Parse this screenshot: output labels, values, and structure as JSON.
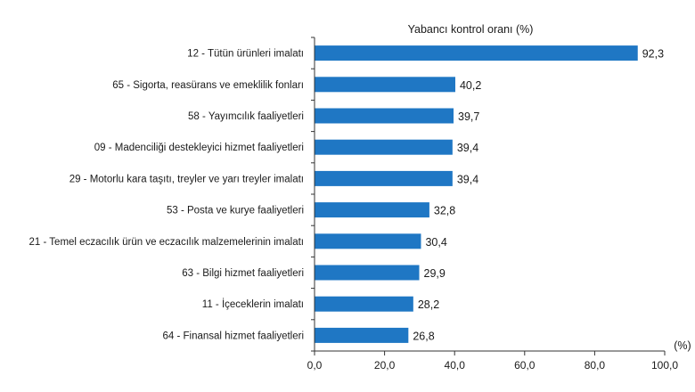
{
  "chart_data": {
    "type": "bar",
    "orientation": "horizontal",
    "title": "Yabancı kontrol oranı (%)",
    "xlabel": "(%)",
    "ylabel": "",
    "xlim": [
      0,
      100
    ],
    "xticks": [
      "0,0",
      "20,0",
      "40,0",
      "60,0",
      "80,0",
      "100,0"
    ],
    "xtick_values": [
      0,
      20,
      40,
      60,
      80,
      100
    ],
    "grid": false,
    "bar_color": "#1f77c4",
    "categories": [
      "12 - Tütün ürünleri imalatı",
      "65 - Sigorta, reasürans ve emeklilik fonları",
      "58 - Yayımcılık faaliyetleri",
      "09 - Madenciliği destekleyici hizmet faaliyetleri",
      "29 - Motorlu kara taşıtı, treyler ve yarı treyler imalatı",
      "53 - Posta ve kurye faaliyetleri",
      "21 - Temel eczacılık ürün ve eczacılık malzemelerinin imalatı",
      "63 - Bilgi hizmet faaliyetleri",
      "11 - İçeceklerin imalatı",
      "64 - Finansal hizmet faaliyetleri"
    ],
    "values": [
      92.3,
      40.2,
      39.7,
      39.4,
      39.4,
      32.8,
      30.4,
      29.9,
      28.2,
      26.8
    ],
    "value_labels": [
      "92,3",
      "40,2",
      "39,7",
      "39,4",
      "39,4",
      "32,8",
      "30,4",
      "29,9",
      "28,2",
      "26,8"
    ]
  }
}
